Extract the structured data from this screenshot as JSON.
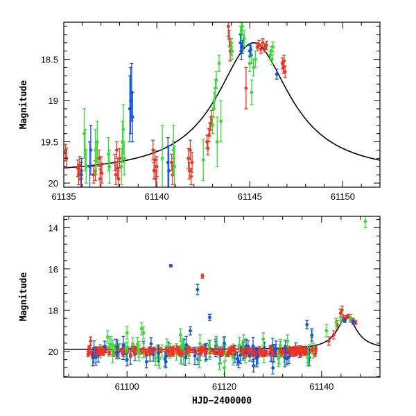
{
  "chart_data": [
    {
      "type": "scatter",
      "panel": "top",
      "title": "",
      "xlabel": "",
      "ylabel": "Magnitude",
      "xlim": [
        61135,
        61152
      ],
      "ylim": [
        20.05,
        18.05
      ],
      "inverted_y": true,
      "xticks": [
        61135,
        61140,
        61145,
        61150
      ],
      "xtick_labels": [
        "61135",
        "61140",
        "61145",
        "61150"
      ],
      "yticks": [
        18.5,
        19,
        19.5,
        20
      ],
      "ytick_labels": [
        "18.5",
        "19",
        "19.5",
        "20"
      ],
      "model_curve": {
        "name": "model",
        "color": "#000000",
        "t0": 61145.2,
        "peak_mag": 18.3,
        "base_mag": 19.9,
        "tE": 2.4
      },
      "series": [
        {
          "name": "red",
          "color": "#ee3322",
          "points": [
            [
              61135.1,
              19.63,
              0.1
            ],
            [
              61135.15,
              19.7,
              0.12
            ],
            [
              61135.75,
              19.82,
              0.1
            ],
            [
              61135.8,
              19.9,
              0.12
            ],
            [
              61135.85,
              19.78,
              0.1
            ],
            [
              61135.9,
              19.95,
              0.12
            ],
            [
              61135.95,
              19.85,
              0.1
            ],
            [
              61136.6,
              19.9,
              0.1
            ],
            [
              61136.7,
              19.85,
              0.12
            ],
            [
              61136.9,
              19.7,
              0.1
            ],
            [
              61136.95,
              19.95,
              0.12
            ],
            [
              61137.0,
              19.78,
              0.1
            ],
            [
              61137.05,
              19.88,
              0.12
            ],
            [
              61137.75,
              19.75,
              0.1
            ],
            [
              61137.8,
              19.9,
              0.12
            ],
            [
              61137.85,
              19.6,
              0.1
            ],
            [
              61137.9,
              19.82,
              0.12
            ],
            [
              61137.95,
              19.95,
              0.1
            ],
            [
              61138.0,
              19.7,
              0.12
            ],
            [
              61139.8,
              19.6,
              0.12
            ],
            [
              61139.85,
              19.85,
              0.1
            ],
            [
              61139.9,
              19.72,
              0.12
            ],
            [
              61139.95,
              19.95,
              0.1
            ],
            [
              61140.0,
              19.8,
              0.12
            ],
            [
              61140.8,
              19.75,
              0.1
            ],
            [
              61140.85,
              19.9,
              0.12
            ],
            [
              61140.9,
              19.6,
              0.1
            ],
            [
              61141.7,
              19.7,
              0.12
            ],
            [
              61141.75,
              19.85,
              0.1
            ],
            [
              61141.8,
              19.6,
              0.12
            ],
            [
              61141.85,
              19.92,
              0.1
            ],
            [
              61141.9,
              19.75,
              0.12
            ],
            [
              61142.7,
              19.5,
              0.08
            ],
            [
              61142.75,
              19.58,
              0.08
            ],
            [
              61142.8,
              19.42,
              0.08
            ],
            [
              61142.85,
              19.35,
              0.08
            ],
            [
              61142.9,
              19.28,
              0.08
            ],
            [
              61142.95,
              19.2,
              0.08
            ],
            [
              61143.85,
              18.1,
              0.12
            ],
            [
              61143.9,
              18.25,
              0.1
            ],
            [
              61143.95,
              18.4,
              0.12
            ],
            [
              61144.0,
              18.35,
              0.1
            ],
            [
              61144.8,
              18.85,
              0.25
            ],
            [
              61145.4,
              18.35,
              0.05
            ],
            [
              61145.5,
              18.32,
              0.05
            ],
            [
              61145.6,
              18.38,
              0.05
            ],
            [
              61145.7,
              18.3,
              0.05
            ],
            [
              61145.8,
              18.36,
              0.05
            ],
            [
              61145.9,
              18.33,
              0.05
            ],
            [
              61146.75,
              18.55,
              0.07
            ],
            [
              61146.8,
              18.6,
              0.07
            ],
            [
              61146.85,
              18.52,
              0.07
            ],
            [
              61146.9,
              18.65,
              0.07
            ]
          ]
        },
        {
          "name": "green",
          "color": "#33dd33",
          "points": [
            [
              61136.1,
              19.4,
              0.3
            ],
            [
              61136.15,
              19.6,
              0.25
            ],
            [
              61136.2,
              19.8,
              0.2
            ],
            [
              61136.7,
              19.6,
              0.25
            ],
            [
              61136.75,
              19.7,
              0.2
            ],
            [
              61136.8,
              19.5,
              0.25
            ],
            [
              61137.4,
              19.65,
              0.2
            ],
            [
              61137.45,
              19.8,
              0.2
            ],
            [
              61138.1,
              19.8,
              0.22
            ],
            [
              61138.15,
              19.5,
              0.25
            ],
            [
              61138.2,
              19.35,
              0.3
            ],
            [
              61138.25,
              19.7,
              0.2
            ],
            [
              61140.3,
              19.7,
              0.4
            ],
            [
              61140.9,
              19.6,
              0.3
            ],
            [
              61140.95,
              19.8,
              0.25
            ],
            [
              61142.5,
              19.72,
              0.25
            ],
            [
              61143.0,
              19.3,
              0.1
            ],
            [
              61143.05,
              19.1,
              0.1
            ],
            [
              61143.1,
              19.0,
              0.1
            ],
            [
              61143.15,
              18.85,
              0.1
            ],
            [
              61143.2,
              18.75,
              0.1
            ],
            [
              61143.25,
              19.5,
              0.3
            ],
            [
              61143.35,
              18.55,
              0.1
            ],
            [
              61143.45,
              19.25,
              0.25
            ],
            [
              61144.0,
              18.35,
              0.1
            ],
            [
              61144.05,
              18.4,
              0.1
            ],
            [
              61144.5,
              18.2,
              0.1
            ],
            [
              61144.55,
              18.15,
              0.1
            ],
            [
              61144.6,
              18.1,
              0.1
            ],
            [
              61144.65,
              18.3,
              0.1
            ],
            [
              61144.7,
              18.25,
              0.1
            ],
            [
              61145.0,
              18.55,
              0.1
            ],
            [
              61145.1,
              18.45,
              0.1
            ],
            [
              61145.2,
              18.6,
              0.1
            ],
            [
              61145.3,
              18.5,
              0.1
            ],
            [
              61146.1,
              18.45,
              0.06
            ],
            [
              61146.15,
              18.4,
              0.06
            ],
            [
              61146.2,
              18.5,
              0.06
            ],
            [
              61146.25,
              18.35,
              0.06
            ],
            [
              61145.1,
              18.9,
              0.15
            ]
          ]
        },
        {
          "name": "blue",
          "color": "#1155dd",
          "points": [
            [
              61135.95,
              19.9,
              0.2
            ],
            [
              61136.4,
              19.8,
              0.3
            ],
            [
              61136.45,
              19.6,
              0.3
            ],
            [
              61138.55,
              19.1,
              0.4
            ],
            [
              61138.6,
              19.0,
              0.4
            ],
            [
              61138.65,
              18.9,
              0.35
            ],
            [
              61138.7,
              19.2,
              0.3
            ],
            [
              61140.6,
              19.75,
              0.3
            ],
            [
              61140.65,
              19.85,
              0.3
            ],
            [
              61144.5,
              18.3,
              0.1
            ],
            [
              61144.55,
              18.4,
              0.1
            ],
            [
              61144.6,
              18.35,
              0.08
            ],
            [
              61145.0,
              18.4,
              0.07
            ],
            [
              61145.05,
              18.38,
              0.07
            ],
            [
              61146.45,
              18.68,
              0.06
            ]
          ]
        }
      ]
    },
    {
      "type": "scatter",
      "panel": "bottom",
      "title": "",
      "xlabel": "HJD−2400000",
      "ylabel": "Magnitude",
      "xlim": [
        61087,
        61152
      ],
      "ylim": [
        21.25,
        13.45
      ],
      "inverted_y": true,
      "xticks": [
        61100,
        61120,
        61140
      ],
      "xtick_labels": [
        "61100",
        "61120",
        "61140"
      ],
      "yticks": [
        14,
        16,
        18,
        20
      ],
      "ytick_labels": [
        "14",
        "16",
        "18",
        "20"
      ],
      "model_curve": {
        "name": "model",
        "color": "#000000",
        "t0": 61145.2,
        "peak_mag": 18.3,
        "base_mag": 19.9,
        "tE": 2.4
      },
      "baseline": {
        "mag": 20.0,
        "scatter": 0.15,
        "x_start": 61092,
        "x_end": 61139
      },
      "series": [
        {
          "name": "red",
          "color": "#ee3322",
          "points": [
            [
              61092.5,
              19.5,
              0.2
            ],
            [
              61109.0,
              20.0,
              0.2
            ],
            [
              61115.5,
              16.35,
              0.1
            ],
            [
              61143.9,
              18.15,
              0.2
            ],
            [
              61144.2,
              18.0,
              0.2
            ],
            [
              61144.5,
              18.4,
              0.15
            ],
            [
              61145.0,
              18.35,
              0.1
            ],
            [
              61145.5,
              18.3,
              0.1
            ],
            [
              61146.0,
              18.45,
              0.1
            ],
            [
              61146.5,
              18.5,
              0.1
            ],
            [
              61147.0,
              18.6,
              0.1
            ],
            [
              61141.5,
              19.5,
              0.2
            ],
            [
              61142.5,
              19.2,
              0.2
            ],
            [
              61143.2,
              18.7,
              0.2
            ]
          ]
        },
        {
          "name": "green",
          "color": "#33dd33",
          "points": [
            [
              61096.0,
              19.3,
              0.3
            ],
            [
              61100.0,
              19.1,
              0.3
            ],
            [
              61103.0,
              18.9,
              0.3
            ],
            [
              61103.4,
              19.1,
              0.3
            ],
            [
              61111.0,
              19.2,
              0.3
            ],
            [
              61119.0,
              20.6,
              0.3
            ],
            [
              61124.0,
              19.5,
              0.3
            ],
            [
              61128.0,
              19.4,
              0.3
            ],
            [
              61133.0,
              19.5,
              0.3
            ],
            [
              61138.0,
              19.3,
              0.3
            ],
            [
              61141.0,
              19.0,
              0.3
            ],
            [
              61143.0,
              18.6,
              0.2
            ],
            [
              61144.0,
              18.5,
              0.2
            ],
            [
              61146.0,
              18.4,
              0.2
            ],
            [
              61149.0,
              13.7,
              0.3
            ],
            [
              61120.0,
              20.8,
              0.3
            ]
          ]
        },
        {
          "name": "blue",
          "color": "#1155dd",
          "points": [
            [
              61109.0,
              15.85,
              0.05
            ],
            [
              61114.5,
              17.0,
              0.25
            ],
            [
              61117.0,
              18.35,
              0.15
            ],
            [
              61113.0,
              19.0,
              0.2
            ],
            [
              61137.0,
              18.7,
              0.2
            ],
            [
              61138.0,
              19.2,
              0.3
            ],
            [
              61120.0,
              19.6,
              0.3
            ],
            [
              61123.0,
              20.5,
              0.3
            ],
            [
              61108.0,
              20.5,
              0.3
            ],
            [
              61100.0,
              20.4,
              0.3
            ],
            [
              61104.0,
              20.5,
              0.3
            ],
            [
              61126.0,
              20.7,
              0.3
            ],
            [
              61130.0,
              20.8,
              0.3
            ],
            [
              61144.8,
              18.5,
              0.1
            ],
            [
              61146.5,
              18.6,
              0.1
            ]
          ]
        }
      ]
    }
  ]
}
